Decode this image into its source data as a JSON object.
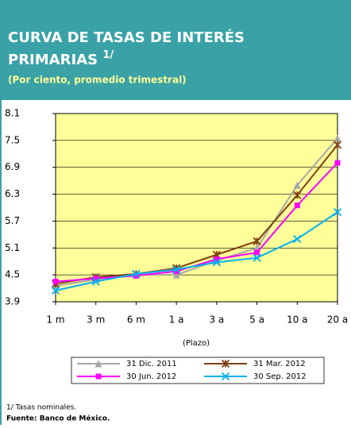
{
  "chart_data": {
    "type": "line",
    "title_lines": [
      "CURVA DE TASAS DE INTERÉS",
      "PRIMARIAS"
    ],
    "title_superscript": "1/",
    "subtitle": "(Por ciento, promedio trimestral)",
    "x_label": "(Plazo)",
    "categories": [
      "1 m",
      "3 m",
      "6 m",
      "1 a",
      "3 a",
      "5 a",
      "10 a",
      "20 a"
    ],
    "ylim": [
      3.9,
      8.1
    ],
    "yticks": [
      3.9,
      4.5,
      5.1,
      5.7,
      6.3,
      6.9,
      7.5,
      8.1
    ],
    "grid": true,
    "series": [
      {
        "name": "31 Dic. 2011",
        "color": "#a6a6a6",
        "marker": "triangle",
        "values": [
          4.25,
          4.4,
          4.5,
          4.5,
          4.82,
          5.1,
          6.5,
          7.55
        ]
      },
      {
        "name": "31 Mar. 2012",
        "color": "#7f3f10",
        "marker": "star",
        "values": [
          4.3,
          4.45,
          4.52,
          4.65,
          4.95,
          5.25,
          6.28,
          7.4
        ]
      },
      {
        "name": "30 Jun. 2012",
        "color": "#ff00ff",
        "marker": "square",
        "values": [
          4.35,
          4.42,
          4.48,
          4.58,
          4.85,
          5.0,
          6.05,
          7.0
        ]
      },
      {
        "name": "30 Sep. 2012",
        "color": "#00b0f0",
        "marker": "x",
        "values": [
          4.15,
          4.35,
          4.52,
          4.62,
          4.78,
          4.88,
          5.3,
          5.9
        ]
      }
    ],
    "footnotes": [
      "1/ Tasas nominales.",
      "Fuente:  Banco de México."
    ]
  }
}
